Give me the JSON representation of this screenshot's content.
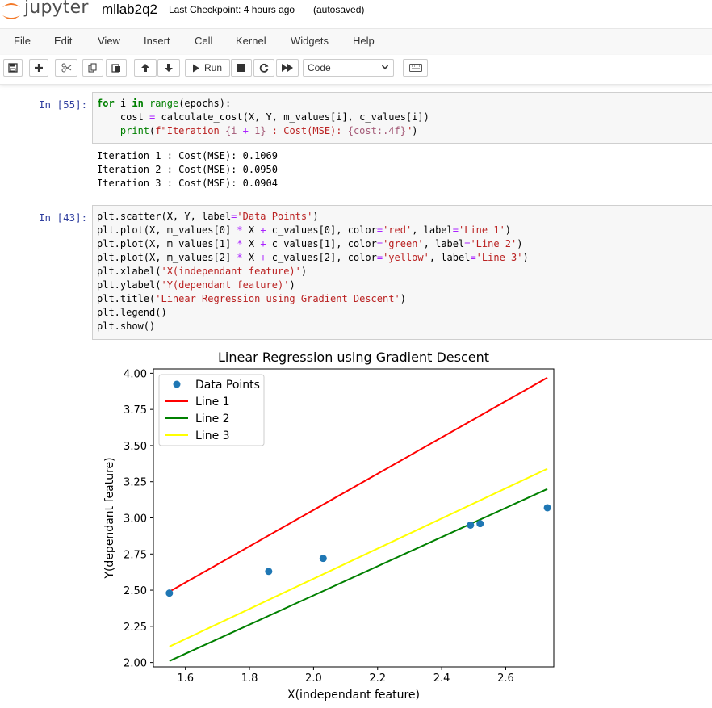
{
  "header": {
    "app_name": "jupyter",
    "notebook_name": "mllab2q2",
    "checkpoint_label": "Last Checkpoint: 4 hours ago",
    "autosave_status": "(autosaved)"
  },
  "menu": [
    "File",
    "Edit",
    "View",
    "Insert",
    "Cell",
    "Kernel",
    "Widgets",
    "Help"
  ],
  "toolbar": {
    "run_label": "Run",
    "cell_type": "Code",
    "icons": [
      "save-icon",
      "plus-icon",
      "scissors-icon",
      "copy-icon",
      "paste-icon",
      "arrow-up-icon",
      "arrow-down-icon",
      "run-icon",
      "stop-icon",
      "restart-icon",
      "fast-forward-icon",
      "keyboard-icon"
    ]
  },
  "cells": [
    {
      "prompt": "In [55]:",
      "code": [
        [
          [
            "for",
            "k"
          ],
          [
            " i ",
            ""
          ],
          [
            "in",
            "k"
          ],
          [
            " ",
            ""
          ],
          [
            "range",
            "b"
          ],
          [
            "(epochs):",
            ""
          ]
        ],
        [
          [
            "    cost ",
            ""
          ],
          [
            "=",
            "o"
          ],
          [
            " calculate_cost(X, Y, m_values[i], c_values[i])",
            ""
          ]
        ],
        [
          [
            "    ",
            ""
          ],
          [
            "print",
            "b"
          ],
          [
            "(",
            ""
          ],
          [
            "f\"Iteration ",
            "s"
          ],
          [
            "{i ",
            "si"
          ],
          [
            "+",
            "o"
          ],
          [
            " 1}",
            "si"
          ],
          [
            " : Cost(MSE): ",
            "s"
          ],
          [
            "{cost:.4f}",
            "si"
          ],
          [
            "\"",
            "s"
          ],
          [
            ")",
            ""
          ]
        ]
      ],
      "output": [
        "Iteration 1 : Cost(MSE): 0.1069",
        "Iteration 2 : Cost(MSE): 0.0950",
        "Iteration 3 : Cost(MSE): 0.0904"
      ]
    },
    {
      "prompt": "In [43]:",
      "code": [
        [
          [
            "plt.scatter(X, Y, label",
            ""
          ],
          [
            "=",
            "o"
          ],
          [
            "'Data Points'",
            "s"
          ],
          [
            ")",
            ""
          ]
        ],
        [
          [
            "plt.plot(X, m_values[0] ",
            ""
          ],
          [
            "*",
            "o"
          ],
          [
            " X ",
            ""
          ],
          [
            "+",
            "o"
          ],
          [
            " c_values[0], color",
            ""
          ],
          [
            "=",
            "o"
          ],
          [
            "'red'",
            "s"
          ],
          [
            ", label",
            ""
          ],
          [
            "=",
            "o"
          ],
          [
            "'Line 1'",
            "s"
          ],
          [
            ")",
            ""
          ]
        ],
        [
          [
            "plt.plot(X, m_values[1] ",
            ""
          ],
          [
            "*",
            "o"
          ],
          [
            " X ",
            ""
          ],
          [
            "+",
            "o"
          ],
          [
            " c_values[1], color",
            ""
          ],
          [
            "=",
            "o"
          ],
          [
            "'green'",
            "s"
          ],
          [
            ", label",
            ""
          ],
          [
            "=",
            "o"
          ],
          [
            "'Line 2'",
            "s"
          ],
          [
            ")",
            ""
          ]
        ],
        [
          [
            "plt.plot(X, m_values[2] ",
            ""
          ],
          [
            "*",
            "o"
          ],
          [
            " X ",
            ""
          ],
          [
            "+",
            "o"
          ],
          [
            " c_values[2], color",
            ""
          ],
          [
            "=",
            "o"
          ],
          [
            "'yellow'",
            "s"
          ],
          [
            ", label",
            ""
          ],
          [
            "=",
            "o"
          ],
          [
            "'Line 3'",
            "s"
          ],
          [
            ")",
            ""
          ]
        ],
        [
          [
            "plt.xlabel(",
            ""
          ],
          [
            "'X(independant feature)'",
            "s"
          ],
          [
            ")",
            ""
          ]
        ],
        [
          [
            "plt.ylabel(",
            ""
          ],
          [
            "'Y(dependant feature)'",
            "s"
          ],
          [
            ")",
            ""
          ]
        ],
        [
          [
            "plt.title(",
            ""
          ],
          [
            "'Linear Regression using Gradient Descent'",
            "s"
          ],
          [
            ")",
            ""
          ]
        ],
        [
          [
            "plt.legend()",
            ""
          ]
        ],
        [
          [
            "plt.show()",
            ""
          ]
        ]
      ]
    }
  ],
  "chart_data": {
    "type": "scatter",
    "title": "Linear Regression using Gradient Descent",
    "xlabel": "X(independant feature)",
    "ylabel": "Y(dependant feature)",
    "xlim": [
      1.5,
      2.75
    ],
    "ylim": [
      1.97,
      4.03
    ],
    "xticks": [
      "1.6",
      "1.8",
      "2.0",
      "2.2",
      "2.4",
      "2.6"
    ],
    "yticks": [
      "2.00",
      "2.25",
      "2.50",
      "2.75",
      "3.00",
      "3.25",
      "3.50",
      "3.75",
      "4.00"
    ],
    "grid": false,
    "legend_position": "top-left",
    "series": [
      {
        "name": "Data Points",
        "kind": "scatter",
        "color": "#1f77b4",
        "x": [
          1.55,
          1.86,
          2.03,
          2.49,
          2.52,
          2.73
        ],
        "y": [
          2.48,
          2.63,
          2.72,
          2.95,
          2.96,
          3.07
        ]
      },
      {
        "name": "Line 1",
        "kind": "line",
        "color": "#ff0000",
        "x": [
          1.55,
          2.73
        ],
        "y": [
          2.49,
          3.97
        ]
      },
      {
        "name": "Line 2",
        "kind": "line",
        "color": "#008000",
        "x": [
          1.55,
          2.73
        ],
        "y": [
          2.01,
          3.2
        ]
      },
      {
        "name": "Line 3",
        "kind": "line",
        "color": "#ffff00",
        "x": [
          1.55,
          2.73
        ],
        "y": [
          2.11,
          3.34
        ]
      }
    ]
  }
}
